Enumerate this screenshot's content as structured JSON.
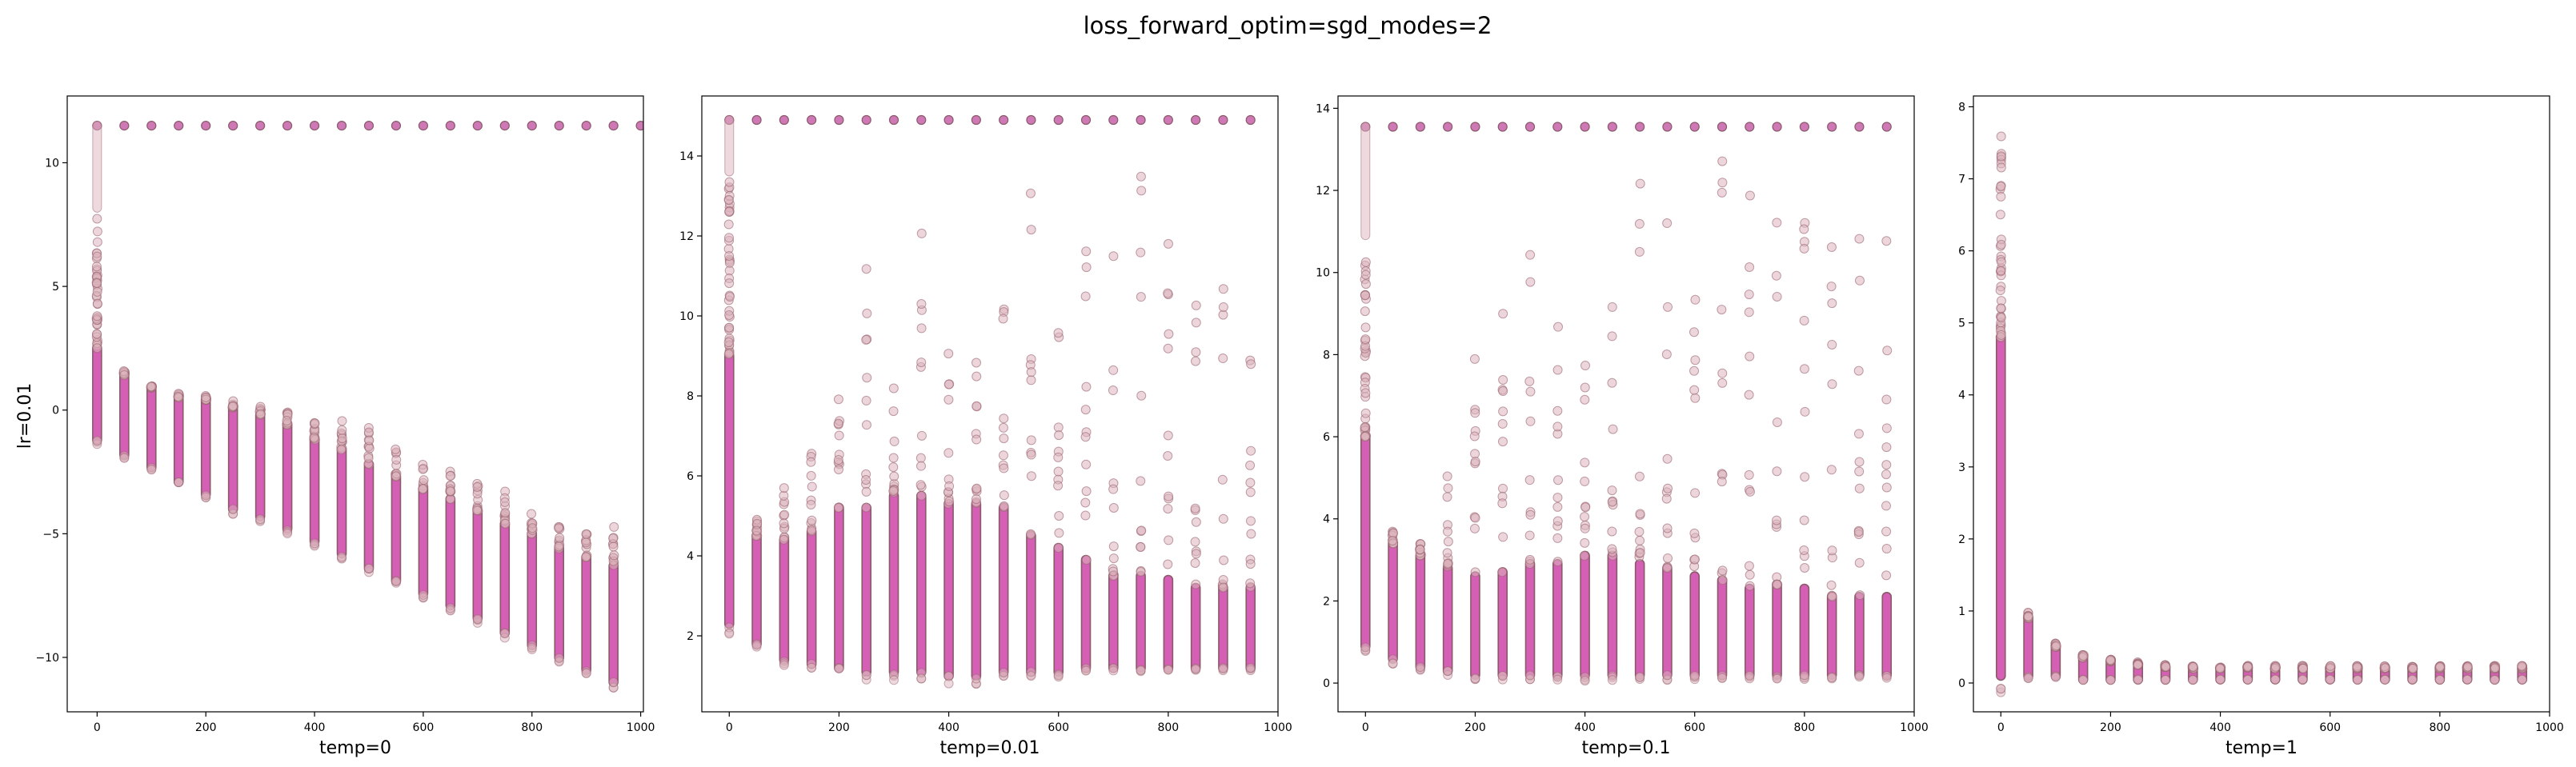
{
  "figure": {
    "title": "loss_forward_optim=sgd_modes=2",
    "row_label": "lr=0.01"
  },
  "colors": {
    "dense_fill": "#d45fb4",
    "dense_edge": "#8a5a6a",
    "sparse_fill": "#dcb4bd",
    "sparse_edge": "#9a6470",
    "top_fill": "#c760a9",
    "top_edge": "#8a5a6a",
    "frame": "#000000"
  },
  "chart_data": [
    {
      "type": "scatter",
      "title": "",
      "xlabel": "temp=0",
      "ylabel": "lr=0.01",
      "xlim": [
        -55,
        1005
      ],
      "ylim": [
        -12.2,
        12.7
      ],
      "xticks": [
        0,
        200,
        400,
        600,
        800,
        1000
      ],
      "yticks": [
        -10,
        -5,
        0,
        5,
        10
      ],
      "x": [
        0,
        50,
        100,
        150,
        200,
        250,
        300,
        350,
        400,
        450,
        500,
        550,
        600,
        650,
        700,
        750,
        800,
        850,
        900,
        950
      ],
      "dense_low": [
        -1.2,
        -1.8,
        -2.3,
        -2.9,
        -3.4,
        -4.0,
        -4.3,
        -4.8,
        -5.3,
        -5.8,
        -6.4,
        -6.9,
        -7.4,
        -7.9,
        -8.4,
        -9.0,
        -9.5,
        -10.0,
        -10.5,
        -11.0
      ],
      "dense_high": [
        2.5,
        1.4,
        0.9,
        0.5,
        0.4,
        0.1,
        -0.2,
        -0.6,
        -1.2,
        -1.6,
        -2.2,
        -2.7,
        -3.2,
        -3.6,
        -4.1,
        -4.6,
        -5.0,
        -5.6,
        -6.0,
        -6.3
      ],
      "sparse_high": [
        8.0,
        1.6,
        1.0,
        0.7,
        0.6,
        0.4,
        0.2,
        0.0,
        -0.2,
        -0.4,
        -0.7,
        -1.4,
        -2.0,
        -2.4,
        -2.9,
        -3.1,
        -3.9,
        -4.4,
        -4.8,
        -4.7
      ],
      "top_value": 11.5,
      "top_band_x": [
        0,
        1005
      ]
    },
    {
      "type": "scatter",
      "title": "",
      "xlabel": "temp=0.01",
      "ylabel": "",
      "xlim": [
        -50,
        1000
      ],
      "ylim": [
        0.1,
        15.5
      ],
      "xticks": [
        0,
        200,
        400,
        600,
        800,
        1000
      ],
      "yticks": [
        2,
        4,
        6,
        8,
        10,
        12,
        14
      ],
      "x": [
        0,
        50,
        100,
        150,
        200,
        250,
        300,
        350,
        400,
        450,
        500,
        550,
        600,
        650,
        700,
        750,
        800,
        850,
        900,
        950
      ],
      "dense_low": [
        2.3,
        1.8,
        1.4,
        1.3,
        1.2,
        1.1,
        1.1,
        1.1,
        1.0,
        1.0,
        1.1,
        1.1,
        1.1,
        1.2,
        1.2,
        1.2,
        1.2,
        1.2,
        1.2,
        1.2
      ],
      "dense_high": [
        9.0,
        4.5,
        4.4,
        4.6,
        5.2,
        5.2,
        5.5,
        5.5,
        5.3,
        5.3,
        5.2,
        4.5,
        4.2,
        3.9,
        3.5,
        3.5,
        3.4,
        3.2,
        3.2,
        3.2
      ],
      "sparse_high": [
        13.5,
        5.0,
        7.7,
        6.8,
        8.9,
        12.5,
        8.3,
        12.6,
        11.6,
        9.1,
        10.5,
        13.5,
        10.4,
        14.3,
        13.1,
        14.2,
        12.4,
        11.8,
        11.4,
        9.8
      ],
      "top_value": 14.9,
      "top_band_x": [
        0,
        950
      ]
    },
    {
      "type": "scatter",
      "title": "",
      "xlabel": "temp=0.1",
      "ylabel": "",
      "xlim": [
        -50,
        1000
      ],
      "ylim": [
        -0.7,
        14.3
      ],
      "xticks": [
        0,
        200,
        400,
        600,
        800,
        1000
      ],
      "yticks": [
        0,
        2,
        4,
        6,
        8,
        10,
        12,
        14
      ],
      "x": [
        0,
        50,
        100,
        150,
        200,
        250,
        300,
        350,
        400,
        450,
        500,
        550,
        600,
        650,
        700,
        750,
        800,
        850,
        900,
        950
      ],
      "dense_low": [
        0.9,
        0.6,
        0.4,
        0.3,
        0.2,
        0.2,
        0.2,
        0.2,
        0.2,
        0.2,
        0.2,
        0.2,
        0.2,
        0.2,
        0.2,
        0.2,
        0.2,
        0.2,
        0.2,
        0.2
      ],
      "dense_high": [
        6.0,
        3.4,
        3.1,
        2.8,
        2.6,
        2.7,
        2.9,
        2.9,
        3.1,
        3.1,
        2.9,
        2.8,
        2.6,
        2.5,
        2.3,
        2.4,
        2.3,
        2.1,
        2.1,
        2.1
      ],
      "sparse_high": [
        10.8,
        3.7,
        3.4,
        5.2,
        7.9,
        10.2,
        10.5,
        9.8,
        10.1,
        11.8,
        12.5,
        13.5,
        12.2,
        12.8,
        12.5,
        12.0,
        11.7,
        11.5,
        11.7,
        12.8
      ],
      "top_value": 13.55,
      "top_band_x": [
        0,
        950
      ]
    },
    {
      "type": "scatter",
      "title": "",
      "xlabel": "temp=1",
      "ylabel": "",
      "xlim": [
        -50,
        1000
      ],
      "ylim": [
        -0.4,
        8.15
      ],
      "xticks": [
        0,
        200,
        400,
        600,
        800,
        1000
      ],
      "yticks": [
        0,
        1,
        2,
        3,
        4,
        5,
        6,
        7,
        8
      ],
      "x": [
        0,
        50,
        100,
        150,
        200,
        250,
        300,
        350,
        400,
        450,
        500,
        550,
        600,
        650,
        700,
        750,
        800,
        850,
        900,
        950
      ],
      "dense_low": [
        0.1,
        0.1,
        0.1,
        0.05,
        0.05,
        0.05,
        0.05,
        0.05,
        0.05,
        0.05,
        0.05,
        0.05,
        0.05,
        0.05,
        0.05,
        0.05,
        0.05,
        0.05,
        0.05,
        0.05
      ],
      "dense_high": [
        4.8,
        0.9,
        0.5,
        0.35,
        0.3,
        0.25,
        0.22,
        0.2,
        0.2,
        0.2,
        0.2,
        0.2,
        0.2,
        0.2,
        0.2,
        0.2,
        0.2,
        0.2,
        0.2,
        0.2
      ],
      "sparse_high": [
        7.7,
        1.0,
        0.55,
        0.4,
        0.33,
        0.3,
        0.26,
        0.24,
        0.24,
        0.24,
        0.24,
        0.24,
        0.24,
        0.24,
        0.24,
        0.24,
        0.24,
        0.24,
        0.24,
        0.24
      ],
      "top_value": null,
      "top_band_x": null
    }
  ]
}
